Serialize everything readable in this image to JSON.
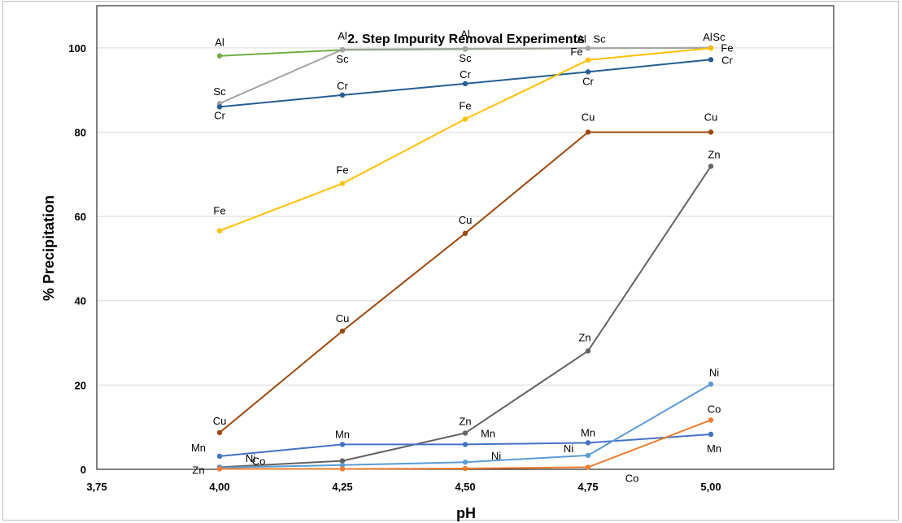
{
  "chart_data": {
    "type": "line",
    "title": "2. Step Impurity Removal Experiments",
    "xlabel": "pH",
    "ylabel": "% Precipitation",
    "x_tick_labels": [
      "3,75",
      "4,00",
      "4,25",
      "4,50",
      "4,75",
      "5,00"
    ],
    "y_tick_labels": [
      "0",
      "20",
      "40",
      "60",
      "80",
      "100"
    ],
    "xlim": [
      3.75,
      5.25
    ],
    "ylim": [
      0,
      110
    ],
    "grid": "horizontal",
    "legend": "none",
    "x": [
      4.0,
      4.25,
      4.5,
      4.75,
      5.0
    ],
    "series": [
      {
        "name": "Al",
        "color": "#70ad47",
        "values": [
          98.1,
          99.5,
          99.7,
          99.9,
          100.0
        ],
        "point_labels": [
          "Al",
          "Al",
          "Al",
          "Al",
          "Al"
        ]
      },
      {
        "name": "Sc",
        "color": "#a5a5a5",
        "values": [
          86.8,
          99.6,
          99.8,
          99.9,
          100.0
        ],
        "point_labels": [
          "Sc",
          "Sc",
          "Sc",
          "Sc",
          "Sc"
        ]
      },
      {
        "name": "Cr",
        "color": "#255e91",
        "values": [
          86.0,
          88.8,
          91.5,
          94.3,
          97.2
        ],
        "point_labels": [
          "Cr",
          "Cr",
          "Cr",
          "Cr",
          "Cr"
        ]
      },
      {
        "name": "Fe",
        "color": "#ffc000",
        "values": [
          56.6,
          67.8,
          83.1,
          97.1,
          99.9
        ],
        "point_labels": [
          "Fe",
          "Fe",
          "Fe",
          "Fe",
          "Fe"
        ]
      },
      {
        "name": "Cu",
        "color": "#9e480e",
        "values": [
          8.7,
          32.8,
          56.0,
          80.0,
          80.0
        ],
        "point_labels": [
          "Cu",
          "Cu",
          "Cu",
          "Cu",
          "Cu"
        ]
      },
      {
        "name": "Zn",
        "color": "#636363",
        "values": [
          0.5,
          2.0,
          8.6,
          28.1,
          71.9
        ],
        "point_labels": [
          "Zn",
          "",
          "Zn",
          "Zn",
          "Zn"
        ]
      },
      {
        "name": "Mn",
        "color": "#4472c4",
        "values": [
          3.1,
          5.9,
          5.9,
          6.3,
          8.3
        ],
        "point_labels": [
          "Mn",
          "Mn",
          "Mn",
          "Mn",
          "Mn"
        ]
      },
      {
        "name": "Ni",
        "color": "#5b9bd5",
        "values": [
          0.4,
          1.0,
          1.7,
          3.3,
          20.2
        ],
        "point_labels": [
          "Ni",
          "",
          "Ni",
          "Ni",
          "Ni"
        ]
      },
      {
        "name": "Co",
        "color": "#ed7d31",
        "values": [
          0.1,
          0.1,
          0.2,
          0.5,
          11.7
        ],
        "point_labels": [
          "Co",
          "",
          "",
          "Co",
          "Co"
        ]
      }
    ]
  }
}
